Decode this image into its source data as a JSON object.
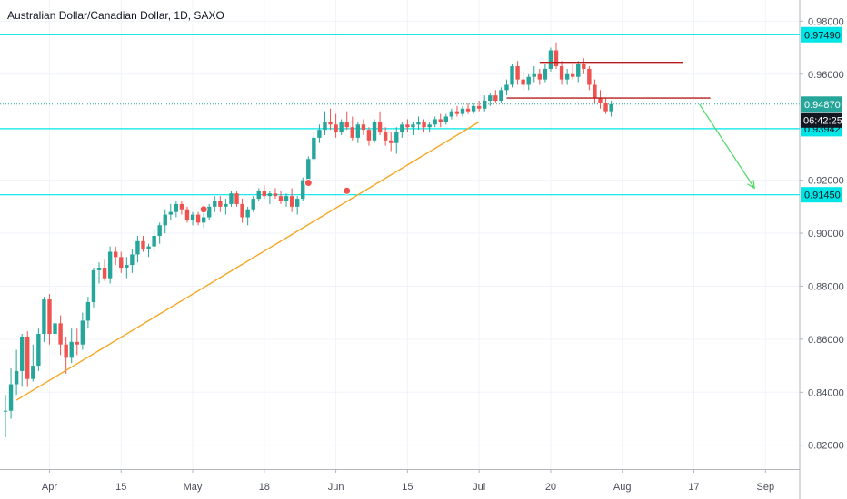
{
  "title": "Australian Dollar/Canadian Dollar, 1D, SAXO",
  "chart_data": {
    "type": "candlestick",
    "ylim": [
      0.811,
      0.988
    ],
    "y_ticks": [
      "0.98000",
      "0.96000",
      "0.92000",
      "0.90000",
      "0.88000",
      "0.86000",
      "0.84000",
      "0.82000"
    ],
    "x_ticks": [
      "Apr",
      "15",
      "May",
      "18",
      "Jun",
      "15",
      "Jul",
      "20",
      "Aug",
      "17",
      "Sep"
    ],
    "x_tick_index": [
      8,
      21,
      34,
      47,
      60,
      73,
      86,
      99,
      112,
      125,
      138
    ],
    "colors": {
      "up": "#26a69a",
      "down": "#ef5350",
      "level": "#00e5e5",
      "trend": "#f5a623",
      "resistance": "#b71c1c",
      "arrow": "#4cd964",
      "price": "#26a69a",
      "countdown": "#131722"
    },
    "candles": [
      [
        0.833,
        0.839,
        0.823,
        0.833
      ],
      [
        0.833,
        0.849,
        0.83,
        0.843
      ],
      [
        0.843,
        0.856,
        0.839,
        0.848
      ],
      [
        0.848,
        0.862,
        0.842,
        0.861
      ],
      [
        0.861,
        0.863,
        0.842,
        0.845
      ],
      [
        0.845,
        0.858,
        0.844,
        0.85
      ],
      [
        0.85,
        0.864,
        0.848,
        0.862
      ],
      [
        0.862,
        0.876,
        0.859,
        0.875
      ],
      [
        0.875,
        0.877,
        0.858,
        0.862
      ],
      [
        0.862,
        0.88,
        0.86,
        0.866
      ],
      [
        0.866,
        0.869,
        0.854,
        0.858
      ],
      [
        0.858,
        0.861,
        0.847,
        0.853
      ],
      [
        0.853,
        0.864,
        0.851,
        0.859
      ],
      [
        0.859,
        0.864,
        0.854,
        0.858
      ],
      [
        0.858,
        0.87,
        0.856,
        0.867
      ],
      [
        0.867,
        0.876,
        0.864,
        0.874
      ],
      [
        0.874,
        0.887,
        0.872,
        0.886
      ],
      [
        0.886,
        0.889,
        0.881,
        0.887
      ],
      [
        0.887,
        0.89,
        0.882,
        0.883
      ],
      [
        0.883,
        0.895,
        0.881,
        0.893
      ],
      [
        0.893,
        0.895,
        0.888,
        0.891
      ],
      [
        0.891,
        0.893,
        0.885,
        0.887
      ],
      [
        0.887,
        0.891,
        0.883,
        0.888
      ],
      [
        0.888,
        0.894,
        0.885,
        0.892
      ],
      [
        0.892,
        0.899,
        0.889,
        0.897
      ],
      [
        0.897,
        0.899,
        0.893,
        0.894
      ],
      [
        0.894,
        0.896,
        0.891,
        0.895
      ],
      [
        0.895,
        0.901,
        0.893,
        0.899
      ],
      [
        0.899,
        0.904,
        0.896,
        0.903
      ],
      [
        0.903,
        0.909,
        0.9,
        0.907
      ],
      [
        0.907,
        0.911,
        0.905,
        0.908
      ],
      [
        0.908,
        0.912,
        0.906,
        0.911
      ],
      [
        0.911,
        0.912,
        0.907,
        0.909
      ],
      [
        0.909,
        0.91,
        0.904,
        0.905
      ],
      [
        0.905,
        0.908,
        0.903,
        0.907
      ],
      [
        0.907,
        0.908,
        0.903,
        0.904
      ],
      [
        0.904,
        0.908,
        0.902,
        0.906
      ],
      [
        0.906,
        0.911,
        0.905,
        0.91
      ],
      [
        0.91,
        0.914,
        0.908,
        0.912
      ],
      [
        0.912,
        0.914,
        0.908,
        0.91
      ],
      [
        0.91,
        0.913,
        0.907,
        0.911
      ],
      [
        0.911,
        0.916,
        0.91,
        0.915
      ],
      [
        0.915,
        0.916,
        0.91,
        0.911
      ],
      [
        0.911,
        0.913,
        0.904,
        0.906
      ],
      [
        0.906,
        0.91,
        0.903,
        0.909
      ],
      [
        0.909,
        0.914,
        0.908,
        0.913
      ],
      [
        0.913,
        0.917,
        0.912,
        0.916
      ],
      [
        0.916,
        0.918,
        0.913,
        0.914
      ],
      [
        0.914,
        0.916,
        0.911,
        0.915
      ],
      [
        0.915,
        0.917,
        0.913,
        0.914
      ],
      [
        0.914,
        0.916,
        0.911,
        0.912
      ],
      [
        0.912,
        0.915,
        0.91,
        0.914
      ],
      [
        0.914,
        0.917,
        0.908,
        0.91
      ],
      [
        0.91,
        0.914,
        0.907,
        0.913
      ],
      [
        0.913,
        0.921,
        0.912,
        0.92
      ],
      [
        0.92,
        0.929,
        0.918,
        0.928
      ],
      [
        0.928,
        0.938,
        0.927,
        0.936
      ],
      [
        0.936,
        0.941,
        0.934,
        0.939
      ],
      [
        0.939,
        0.946,
        0.937,
        0.942
      ],
      [
        0.942,
        0.947,
        0.939,
        0.941
      ],
      [
        0.941,
        0.945,
        0.936,
        0.938
      ],
      [
        0.938,
        0.943,
        0.937,
        0.942
      ],
      [
        0.942,
        0.946,
        0.939,
        0.94
      ],
      [
        0.94,
        0.944,
        0.935,
        0.936
      ],
      [
        0.936,
        0.942,
        0.934,
        0.941
      ],
      [
        0.941,
        0.943,
        0.937,
        0.939
      ],
      [
        0.939,
        0.94,
        0.933,
        0.935
      ],
      [
        0.935,
        0.943,
        0.934,
        0.942
      ],
      [
        0.942,
        0.946,
        0.937,
        0.938
      ],
      [
        0.938,
        0.94,
        0.933,
        0.935
      ],
      [
        0.935,
        0.938,
        0.931,
        0.934
      ],
      [
        0.934,
        0.94,
        0.93,
        0.938
      ],
      [
        0.938,
        0.942,
        0.936,
        0.941
      ],
      [
        0.941,
        0.943,
        0.938,
        0.94
      ],
      [
        0.94,
        0.942,
        0.937,
        0.941
      ],
      [
        0.941,
        0.944,
        0.939,
        0.942
      ],
      [
        0.942,
        0.943,
        0.938,
        0.94
      ],
      [
        0.94,
        0.942,
        0.938,
        0.941
      ],
      [
        0.941,
        0.944,
        0.94,
        0.943
      ],
      [
        0.943,
        0.945,
        0.94,
        0.942
      ],
      [
        0.942,
        0.945,
        0.941,
        0.944
      ],
      [
        0.944,
        0.947,
        0.943,
        0.946
      ],
      [
        0.946,
        0.948,
        0.944,
        0.945
      ],
      [
        0.945,
        0.948,
        0.944,
        0.947
      ],
      [
        0.947,
        0.949,
        0.945,
        0.946
      ],
      [
        0.946,
        0.949,
        0.945,
        0.948
      ],
      [
        0.948,
        0.95,
        0.946,
        0.947
      ],
      [
        0.947,
        0.952,
        0.946,
        0.95
      ],
      [
        0.95,
        0.953,
        0.948,
        0.952
      ],
      [
        0.952,
        0.954,
        0.949,
        0.95
      ],
      [
        0.95,
        0.955,
        0.949,
        0.954
      ],
      [
        0.954,
        0.958,
        0.952,
        0.956
      ],
      [
        0.956,
        0.964,
        0.955,
        0.963
      ],
      [
        0.963,
        0.965,
        0.956,
        0.958
      ],
      [
        0.958,
        0.961,
        0.954,
        0.956
      ],
      [
        0.956,
        0.96,
        0.954,
        0.959
      ],
      [
        0.959,
        0.963,
        0.957,
        0.96
      ],
      [
        0.96,
        0.962,
        0.956,
        0.958
      ],
      [
        0.958,
        0.964,
        0.957,
        0.962
      ],
      [
        0.962,
        0.97,
        0.961,
        0.969
      ],
      [
        0.969,
        0.972,
        0.962,
        0.963
      ],
      [
        0.963,
        0.965,
        0.956,
        0.958
      ],
      [
        0.958,
        0.962,
        0.956,
        0.96
      ],
      [
        0.96,
        0.964,
        0.958,
        0.959
      ],
      [
        0.959,
        0.965,
        0.957,
        0.964
      ],
      [
        0.964,
        0.966,
        0.96,
        0.962
      ],
      [
        0.962,
        0.963,
        0.954,
        0.956
      ],
      [
        0.956,
        0.958,
        0.949,
        0.951
      ],
      [
        0.951,
        0.954,
        0.947,
        0.949
      ],
      [
        0.949,
        0.951,
        0.945,
        0.946
      ],
      [
        0.946,
        0.95,
        0.944,
        0.9487
      ]
    ],
    "price_levels": [
      {
        "value": 0.9749,
        "label": "0.97490"
      },
      {
        "value": 0.93942,
        "label": "0.93942"
      },
      {
        "value": 0.9145,
        "label": "0.91450"
      }
    ],
    "current_price": {
      "value": 0.9487,
      "label": "0.94870",
      "countdown": "06:42:25"
    },
    "event_markers": [
      {
        "index": 36,
        "value": 0.909
      },
      {
        "index": 55,
        "value": 0.919
      },
      {
        "index": 62,
        "value": 0.916
      }
    ],
    "trend_line": {
      "from": [
        2,
        0.837
      ],
      "to": [
        86,
        0.942
      ]
    },
    "resistance_lines": [
      {
        "from": [
          97,
          0.9645
        ],
        "to": [
          123,
          0.9645
        ]
      },
      {
        "from": [
          91,
          0.951
        ],
        "to": [
          128,
          0.951
        ]
      }
    ],
    "projection_arrow": {
      "from": [
        126,
        0.9487
      ],
      "to": [
        136,
        0.917
      ]
    }
  }
}
